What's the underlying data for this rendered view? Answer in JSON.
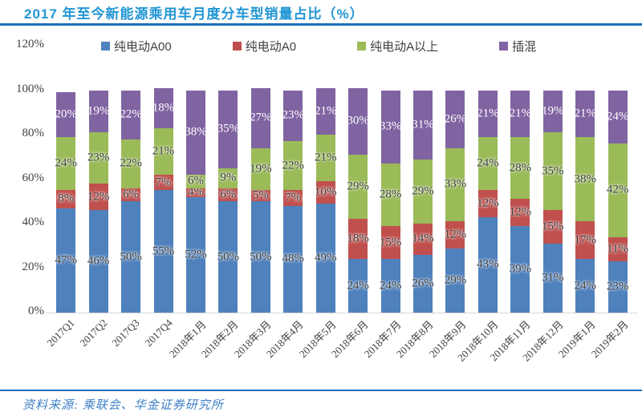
{
  "title": "2017 年至今新能源乘用车月度分车型销量占比（%）",
  "source": "资料来源: 乘联会、华金证券研究所",
  "colors": {
    "title_text": "#2196d3",
    "rule_blue": "#1e70b8",
    "source_text": "#3e80c6",
    "axis_text": "#3f3f3f"
  },
  "chart_data": {
    "type": "bar",
    "stacked": true,
    "grid": false,
    "legend_position": "top",
    "ylim": [
      0,
      120
    ],
    "y_ticks": [
      "0%",
      "20%",
      "40%",
      "60%",
      "80%",
      "100%",
      "120%"
    ],
    "categories": [
      "2017Q1",
      "2017Q2",
      "2017Q3",
      "2017Q4",
      "2018年1月",
      "2018年2月",
      "2018年3月",
      "2018年4月",
      "2018年5月",
      "2018年6月",
      "2018年7月",
      "2018年8月",
      "2018年9月",
      "2018年10月",
      "2018年11月",
      "2018年12月",
      "2019年1月",
      "2019年2月"
    ],
    "series": [
      {
        "name": "纯电动A00",
        "color": "#4F81BD",
        "label_style": "dark",
        "values": [
          47,
          46,
          50,
          55,
          52,
          50,
          50,
          48,
          49,
          24,
          24,
          26,
          29,
          43,
          39,
          31,
          24,
          23
        ]
      },
      {
        "name": "纯电动A0",
        "color": "#C0504D",
        "label_style": "dark",
        "values": [
          8,
          12,
          6,
          7,
          4,
          6,
          5,
          7,
          10,
          18,
          15,
          14,
          12,
          12,
          12,
          15,
          17,
          11
        ]
      },
      {
        "name": "纯电动A以上",
        "color": "#9BBB59",
        "label_style": "dark",
        "values": [
          24,
          23,
          22,
          21,
          6,
          9,
          19,
          22,
          21,
          29,
          28,
          29,
          33,
          24,
          28,
          35,
          38,
          42
        ]
      },
      {
        "name": "插混",
        "color": "#8064A2",
        "label_style": "light",
        "values": [
          20,
          19,
          22,
          18,
          38,
          35,
          27,
          23,
          21,
          30,
          33,
          31,
          26,
          21,
          21,
          19,
          21,
          24
        ]
      }
    ],
    "value_suffix": "%"
  }
}
